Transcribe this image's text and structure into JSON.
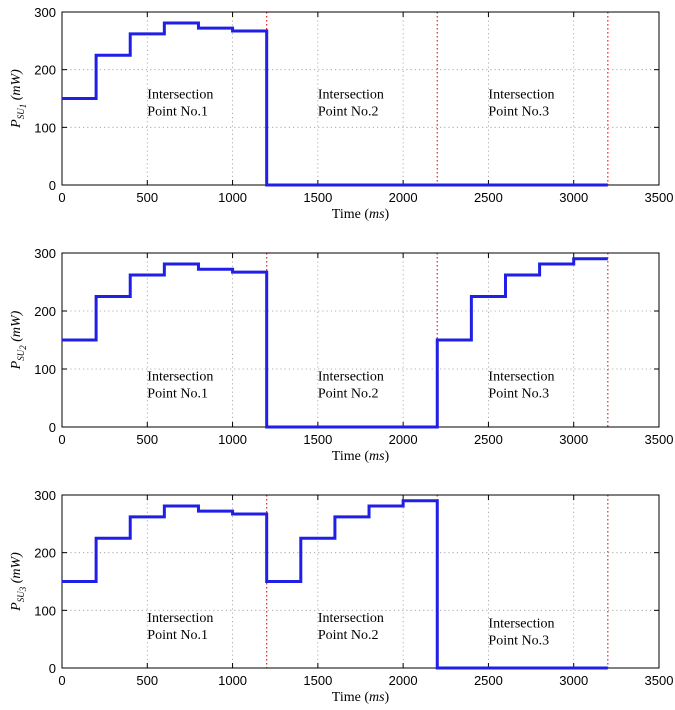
{
  "chart_data": [
    {
      "type": "line",
      "panel": 1,
      "xlabel": "Time (ms)",
      "ylabel": "P_SU1 (mW)",
      "ylabel_main": "P",
      "ylabel_sub": "SU",
      "ylabel_subsub": "1",
      "ylabel_unit": "(mW)",
      "xlim": [
        0,
        3500
      ],
      "ylim": [
        0,
        300
      ],
      "xticks": [
        0,
        500,
        1000,
        1500,
        2000,
        2500,
        3000,
        3500
      ],
      "yticks": [
        0,
        100,
        200,
        300
      ],
      "grid": true,
      "series_color": "#1f1fe6",
      "reference_line_color": "#e02020",
      "reference_lines_x": [
        1200,
        2200,
        3200
      ],
      "series": [
        {
          "x": [
            0,
            200,
            200,
            400,
            400,
            600,
            600,
            800,
            800,
            1000,
            1000,
            1200,
            1200,
            3200
          ],
          "y": [
            150,
            150,
            225,
            225,
            262,
            262,
            281,
            281,
            272,
            272,
            267,
            267,
            0,
            0
          ]
        }
      ],
      "annotations": [
        {
          "lines": [
            "Intersection",
            "Point No.1"
          ],
          "x": 500,
          "y": 150
        },
        {
          "lines": [
            "Intersection",
            "Point No.2"
          ],
          "x": 1500,
          "y": 150
        },
        {
          "lines": [
            "Intersection",
            "Point No.3"
          ],
          "x": 2500,
          "y": 150
        }
      ]
    },
    {
      "type": "line",
      "panel": 2,
      "xlabel": "Time (ms)",
      "ylabel": "P_SU2 (mW)",
      "ylabel_main": "P",
      "ylabel_sub": "SU",
      "ylabel_subsub": "2",
      "ylabel_unit": "(mW)",
      "xlim": [
        0,
        3500
      ],
      "ylim": [
        0,
        300
      ],
      "xticks": [
        0,
        500,
        1000,
        1500,
        2000,
        2500,
        3000,
        3500
      ],
      "yticks": [
        0,
        100,
        200,
        300
      ],
      "grid": true,
      "series_color": "#1f1fe6",
      "reference_line_color": "#e02020",
      "reference_lines_x": [
        1200,
        2200,
        3200
      ],
      "series": [
        {
          "x": [
            0,
            200,
            200,
            400,
            400,
            600,
            600,
            800,
            800,
            1000,
            1000,
            1200,
            1200,
            2200,
            2200,
            2400,
            2400,
            2600,
            2600,
            2800,
            2800,
            3000,
            3000,
            3200
          ],
          "y": [
            150,
            150,
            225,
            225,
            262,
            262,
            281,
            281,
            272,
            272,
            267,
            267,
            0,
            0,
            150,
            150,
            225,
            225,
            262,
            262,
            281,
            281,
            290,
            290
          ]
        }
      ],
      "annotations": [
        {
          "lines": [
            "Intersection",
            "Point No.1"
          ],
          "x": 500,
          "y": 80
        },
        {
          "lines": [
            "Intersection",
            "Point No.2"
          ],
          "x": 1500,
          "y": 80
        },
        {
          "lines": [
            "Intersection",
            "Point No.3"
          ],
          "x": 2500,
          "y": 80
        }
      ]
    },
    {
      "type": "line",
      "panel": 3,
      "xlabel": "Time (ms)",
      "ylabel": "P_SU3 (mW)",
      "ylabel_main": "P",
      "ylabel_sub": "SU",
      "ylabel_subsub": "3",
      "ylabel_unit": "(mW)",
      "xlim": [
        0,
        3500
      ],
      "ylim": [
        0,
        300
      ],
      "xticks": [
        0,
        500,
        1000,
        1500,
        2000,
        2500,
        3000,
        3500
      ],
      "yticks": [
        0,
        100,
        200,
        300
      ],
      "grid": true,
      "series_color": "#1f1fe6",
      "reference_line_color": "#e02020",
      "reference_lines_x": [
        1200,
        2200,
        3200
      ],
      "series": [
        {
          "x": [
            0,
            200,
            200,
            400,
            400,
            600,
            600,
            800,
            800,
            1000,
            1000,
            1200,
            1200,
            1400,
            1400,
            1600,
            1600,
            1800,
            1800,
            2000,
            2000,
            2200,
            2200,
            3200
          ],
          "y": [
            150,
            150,
            225,
            225,
            262,
            262,
            281,
            281,
            272,
            272,
            267,
            267,
            150,
            150,
            225,
            225,
            262,
            262,
            281,
            281,
            290,
            290,
            0,
            0
          ]
        }
      ],
      "annotations": [
        {
          "lines": [
            "Intersection",
            "Point No.1"
          ],
          "x": 500,
          "y": 80
        },
        {
          "lines": [
            "Intersection",
            "Point No.2"
          ],
          "x": 1500,
          "y": 80
        },
        {
          "lines": [
            "Intersection",
            "Point No.3"
          ],
          "x": 2500,
          "y": 70
        }
      ]
    }
  ]
}
